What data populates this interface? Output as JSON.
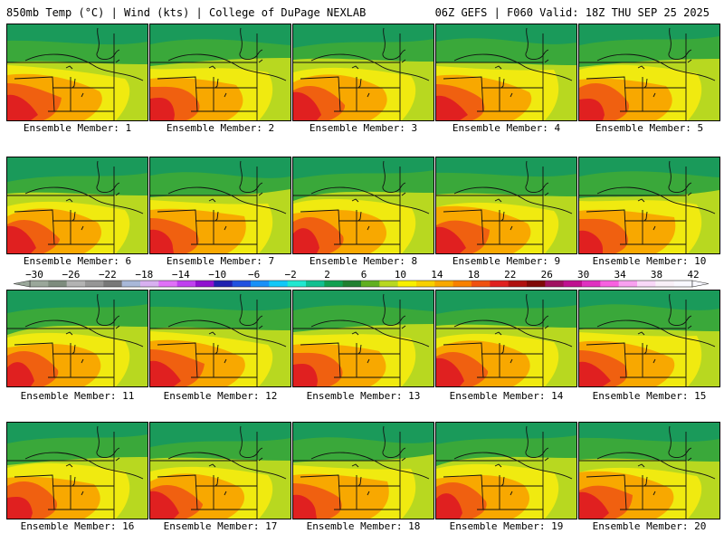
{
  "header": {
    "left_title": "850mb Temp (°C) | Wind (kts) | College of DuPage NEXLAB",
    "right_title": "06Z GEFS | F060 Valid: 18Z THU SEP 25 2025"
  },
  "panels": [
    {
      "label": "Ensemble Member: 1",
      "member": 1
    },
    {
      "label": "Ensemble Member: 2",
      "member": 2
    },
    {
      "label": "Ensemble Member: 3",
      "member": 3
    },
    {
      "label": "Ensemble Member: 4",
      "member": 4
    },
    {
      "label": "Ensemble Member: 5",
      "member": 5
    },
    {
      "label": "Ensemble Member: 6",
      "member": 6
    },
    {
      "label": "Ensemble Member: 7",
      "member": 7
    },
    {
      "label": "Ensemble Member: 8",
      "member": 8
    },
    {
      "label": "Ensemble Member: 9",
      "member": 9
    },
    {
      "label": "Ensemble Member: 10",
      "member": 10
    },
    {
      "label": "Ensemble Member: 11",
      "member": 11
    },
    {
      "label": "Ensemble Member: 12",
      "member": 12
    },
    {
      "label": "Ensemble Member: 13",
      "member": 13
    },
    {
      "label": "Ensemble Member: 14",
      "member": 14
    },
    {
      "label": "Ensemble Member: 15",
      "member": 15
    },
    {
      "label": "Ensemble Member: 16",
      "member": 16
    },
    {
      "label": "Ensemble Member: 17",
      "member": 17
    },
    {
      "label": "Ensemble Member: 18",
      "member": 18
    },
    {
      "label": "Ensemble Member: 19",
      "member": 19
    },
    {
      "label": "Ensemble Member: 20",
      "member": 20
    }
  ],
  "colorbar": {
    "tick_labels": [
      "−30",
      "−26",
      "−22",
      "−18",
      "−14",
      "−10",
      "−6",
      "−2",
      "2",
      "6",
      "10",
      "14",
      "18",
      "22",
      "26",
      "30",
      "34",
      "38",
      "42"
    ],
    "colors": [
      "#9aa79a",
      "#7e8c7e",
      "#b3b3b3",
      "#969696",
      "#787878",
      "#a8b8d8",
      "#d8b0f0",
      "#e070f8",
      "#c040f0",
      "#9010d0",
      "#2020b0",
      "#2050e0",
      "#1890f8",
      "#10c8f8",
      "#20e8d0",
      "#10c090",
      "#10a050",
      "#208030",
      "#60b020",
      "#b8d820",
      "#f8f000",
      "#f8d000",
      "#f8a800",
      "#f88000",
      "#f05010",
      "#e02020",
      "#b01010",
      "#800808",
      "#a01060",
      "#c01090",
      "#e030c0",
      "#f860e0",
      "#f8a0f0",
      "#f8d8f8",
      "#f8f0f8",
      "#f8f8ff"
    ]
  },
  "palette": {
    "cool_green": "#1a9a5a",
    "green": "#3aa83a",
    "yellow_green": "#b8d820",
    "yellow": "#f0ea10",
    "orange": "#f8a800",
    "red_orange": "#f06010",
    "red": "#e02020"
  }
}
